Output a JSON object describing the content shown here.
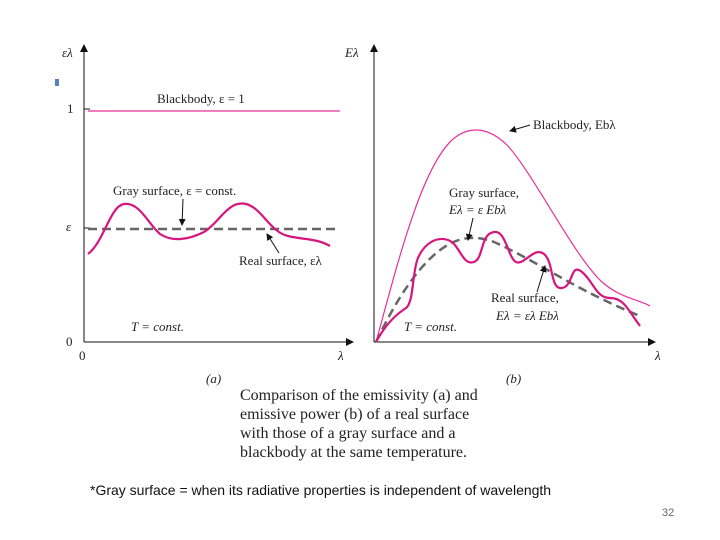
{
  "colors": {
    "blackbody": "#e8309a",
    "real": "#d6167f",
    "gray": "#666666",
    "axis": "#111111"
  },
  "panel_a": {
    "y_axis_label": "ελ",
    "tick_one": "1",
    "tick_eps": "ε",
    "tick_zero": "0",
    "x_origin": "0",
    "x_axis_label": "λ",
    "blackbody_label": "Blackbody, ε = 1",
    "gray_label": "Gray surface, ε = const.",
    "real_label": "Real surface, ελ",
    "temp_label": "T = const.",
    "sublabel": "(a)"
  },
  "panel_b": {
    "y_axis_label": "Eλ",
    "x_axis_label": "λ",
    "blackbody_label": "Blackbody, Ebλ",
    "gray_label_1": "Gray surface,",
    "gray_label_2": "Eλ = ε Ebλ",
    "real_label_1": "Real surface,",
    "real_label_2": "Eλ = ελ Ebλ",
    "temp_label": "T = const.",
    "sublabel": "(b)"
  },
  "caption": {
    "line1": "Comparison of the emissivity (a) and",
    "line2": "emissive power (b) of a real surface",
    "line3": "with those of a gray surface and a",
    "line4": "blackbody at the same temperature."
  },
  "footnote": "*Gray surface = when its radiative properties is independent of wavelength",
  "page_number": "32"
}
